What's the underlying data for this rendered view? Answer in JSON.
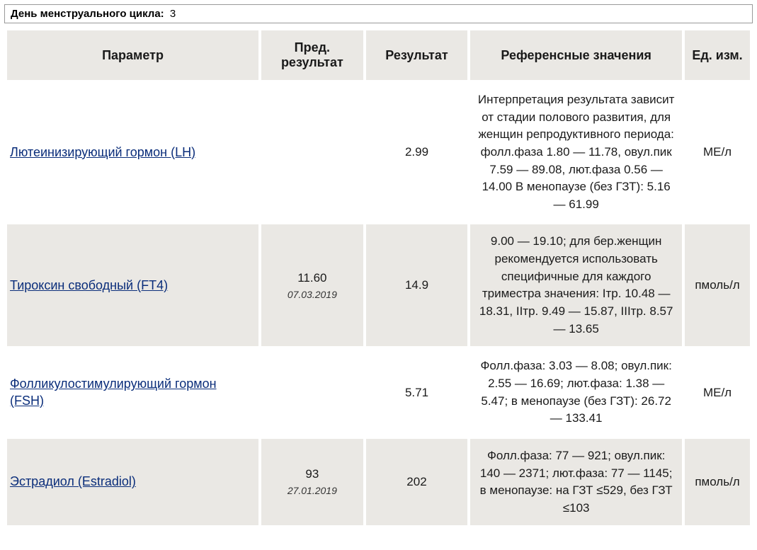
{
  "header": {
    "label": "День менструального цикла:",
    "value": "3"
  },
  "columns": {
    "param": "Параметр",
    "prev": "Пред. результат",
    "result": "Результат",
    "ref": "Референсные значения",
    "unit": "Ед. изм."
  },
  "rows": [
    {
      "shaded": false,
      "param": "Лютеинизирующий гормон (LH)",
      "prev_value": "",
      "prev_date": "",
      "result": "2.99",
      "ref": "Интерпретация результата зависит от стадии полового развития, для женщин репродуктивного периода: фолл.фаза 1.80 — 11.78, овул.пик 7.59 — 89.08, лют.фаза 0.56 — 14.00 В менопаузе (без ГЗТ): 5.16 — 61.99",
      "unit": "МЕ/л"
    },
    {
      "shaded": true,
      "param": "Тироксин свободный (FT4)",
      "prev_value": "11.60",
      "prev_date": "07.03.2019",
      "result": "14.9",
      "ref": "9.00 — 19.10; для бер.женщин рекомендуется использовать специфичные для каждого триместра значения: Iтр. 10.48 — 18.31, IIтр. 9.49 — 15.87, IIIтр. 8.57 — 13.65",
      "unit": "пмоль/л"
    },
    {
      "shaded": false,
      "param": "Фолликулостимулирующий  гормон (FSH)",
      "prev_value": "",
      "prev_date": "",
      "result": "5.71",
      "ref": "Фолл.фаза: 3.03 — 8.08; овул.пик: 2.55 — 16.69; лют.фаза: 1.38 — 5.47; в менопаузе (без ГЗТ): 26.72 — 133.41",
      "unit": "МЕ/л"
    },
    {
      "shaded": true,
      "param": "Эстрадиол (Estradiol)",
      "prev_value": "93",
      "prev_date": "27.01.2019",
      "result": "202",
      "ref": "Фолл.фаза: 77 — 921; овул.пик: 140 — 2371; лют.фаза: 77 — 1145; в менопаузе: на ГЗТ ≤529, без ГЗТ ≤103",
      "unit": "пмоль/л"
    }
  ]
}
